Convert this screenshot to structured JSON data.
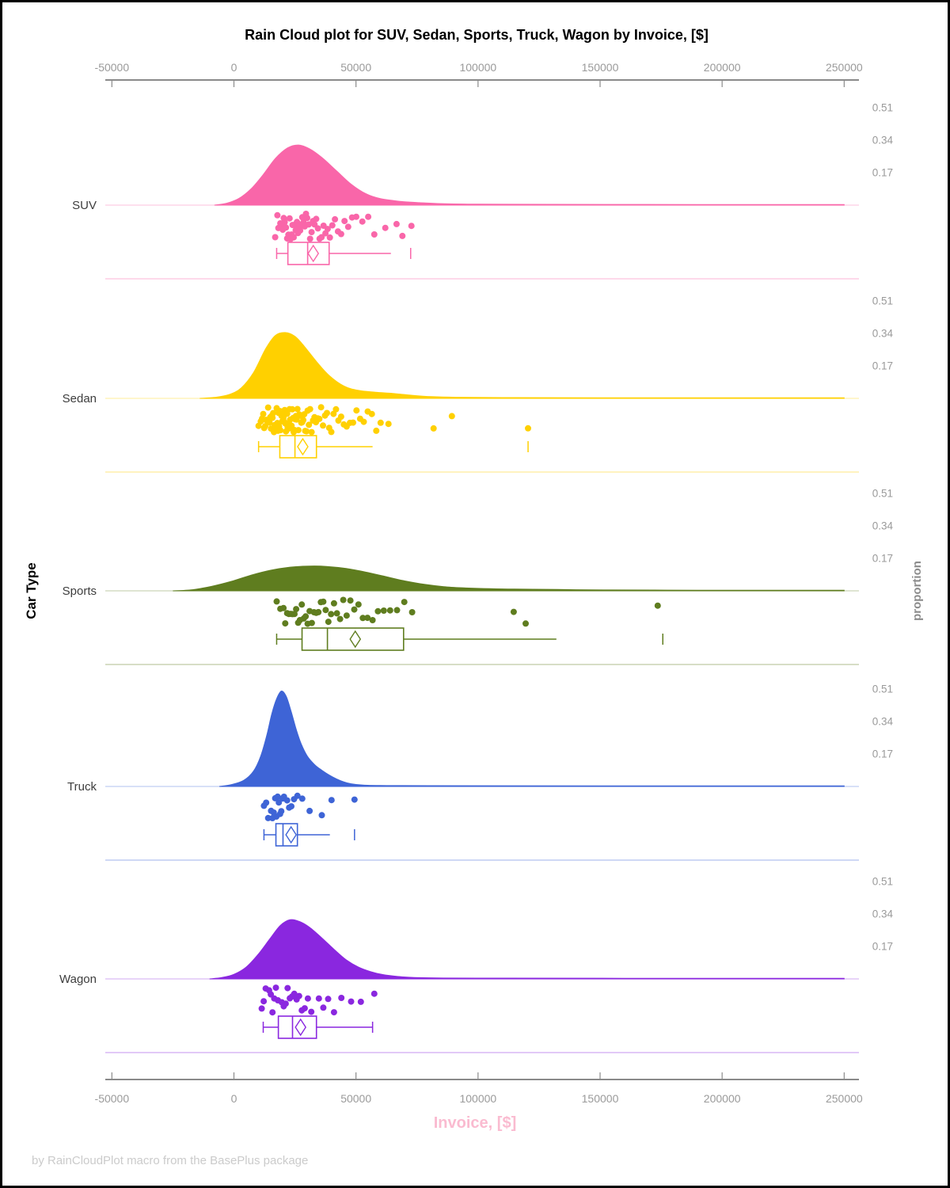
{
  "title": "Rain Cloud plot for SUV, Sedan, Sports, Truck, Wagon by Invoice, [$]",
  "footer": "by RainCloudPlot macro from the BasePlus package",
  "axes": {
    "x_label": "Invoice, [$]",
    "x_label_color": "#fabbd0",
    "y_label": "Car Type",
    "y2_label": "proportion",
    "x_ticks": [
      "-50000",
      "0",
      "50000",
      "100000",
      "150000",
      "200000",
      "250000"
    ],
    "proportion_ticks": [
      "0.51",
      "0.34",
      "0.17"
    ],
    "tick_color": "#9a9a9a"
  },
  "chart_data": {
    "type": "raincloud",
    "orientation": "horizontal",
    "x_axis": {
      "label": "Invoice, [$]",
      "range": [
        -50000,
        250000
      ],
      "ticks": [
        -50000,
        0,
        50000,
        100000,
        150000,
        200000,
        250000
      ]
    },
    "proportion_axis": {
      "label": "proportion",
      "ticks": [
        0.51,
        0.34,
        0.17
      ]
    },
    "categories": [
      "SUV",
      "Sedan",
      "Sports",
      "Truck",
      "Wagon"
    ],
    "series": [
      {
        "name": "SUV",
        "color": "#f966a9",
        "density": [
          [
            -8000,
            0
          ],
          [
            -3000,
            0.01
          ],
          [
            2000,
            0.035
          ],
          [
            7000,
            0.085
          ],
          [
            12000,
            0.16
          ],
          [
            17000,
            0.245
          ],
          [
            22000,
            0.3
          ],
          [
            26500,
            0.315
          ],
          [
            31000,
            0.295
          ],
          [
            36000,
            0.25
          ],
          [
            42000,
            0.18
          ],
          [
            48000,
            0.11
          ],
          [
            54000,
            0.06
          ],
          [
            60000,
            0.034
          ],
          [
            68000,
            0.02
          ],
          [
            76000,
            0.013
          ],
          [
            85000,
            0.008
          ],
          [
            100000,
            0.005
          ],
          [
            130000,
            0.004
          ],
          [
            190000,
            0.0035
          ],
          [
            250000,
            0.003
          ]
        ],
        "points": [
          16900,
          17800,
          18200,
          19000,
          19500,
          20000,
          20400,
          20800,
          21300,
          21800,
          22300,
          22800,
          23200,
          23600,
          24000,
          24500,
          24900,
          25300,
          25800,
          26200,
          26700,
          27100,
          27600,
          28000,
          28500,
          29000,
          29500,
          30000,
          30600,
          31200,
          31800,
          32400,
          33000,
          33700,
          34400,
          35100,
          35900,
          36700,
          37500,
          38400,
          39300,
          40300,
          41400,
          42600,
          43900,
          45300,
          46800,
          48400,
          50100,
          52600,
          55000,
          57500,
          62000,
          66600,
          69000,
          72700
        ],
        "box": {
          "whisker_low": 17500,
          "q1": 22100,
          "median": 30200,
          "q3": 39000,
          "whisker_high": 64300,
          "mean": 32500,
          "outliers": [
            72400
          ]
        }
      },
      {
        "name": "Sedan",
        "color": "#ffd000",
        "density": [
          [
            -14000,
            0
          ],
          [
            -8000,
            0.005
          ],
          [
            -2000,
            0.02
          ],
          [
            3000,
            0.055
          ],
          [
            8000,
            0.135
          ],
          [
            13000,
            0.26
          ],
          [
            17000,
            0.33
          ],
          [
            21000,
            0.345
          ],
          [
            25000,
            0.325
          ],
          [
            29000,
            0.27
          ],
          [
            34000,
            0.19
          ],
          [
            39000,
            0.12
          ],
          [
            45000,
            0.065
          ],
          [
            51000,
            0.042
          ],
          [
            58000,
            0.032
          ],
          [
            65000,
            0.026
          ],
          [
            73000,
            0.016
          ],
          [
            81000,
            0.009
          ],
          [
            91000,
            0.006
          ],
          [
            110000,
            0.004
          ],
          [
            150000,
            0.0035
          ],
          [
            250000,
            0.003
          ]
        ],
        "points": [
          10100,
          11000,
          11500,
          12000,
          12400,
          12800,
          13100,
          13400,
          13700,
          14000,
          14300,
          14600,
          14900,
          15200,
          15500,
          15800,
          16100,
          16400,
          16700,
          17000,
          17200,
          17500,
          17800,
          18000,
          18300,
          18500,
          18800,
          19000,
          19300,
          19500,
          19800,
          20000,
          20300,
          20500,
          20800,
          21000,
          21300,
          21500,
          21800,
          22000,
          22300,
          22500,
          22800,
          23000,
          23300,
          23600,
          23900,
          24200,
          24500,
          24800,
          25100,
          25400,
          25700,
          26000,
          26400,
          26800,
          27200,
          27600,
          28000,
          28400,
          28800,
          29200,
          29700,
          30200,
          30700,
          31200,
          31800,
          32400,
          33000,
          33600,
          34300,
          35000,
          35700,
          36500,
          37300,
          38100,
          39000,
          39900,
          40800,
          41800,
          42800,
          43900,
          45000,
          46200,
          47500,
          48800,
          50200,
          51700,
          53200,
          54800,
          56500,
          58300,
          60100,
          63300,
          81800,
          89300,
          120500
        ],
        "box": {
          "whisker_low": 10100,
          "q1": 18800,
          "median": 25000,
          "q3": 33800,
          "whisker_high": 56800,
          "mean": 28200,
          "outliers": [
            120500
          ]
        }
      },
      {
        "name": "Sports",
        "color": "#5f7d1f",
        "density": [
          [
            -25000,
            0
          ],
          [
            -17000,
            0.006
          ],
          [
            -9000,
            0.024
          ],
          [
            -1000,
            0.05
          ],
          [
            7000,
            0.082
          ],
          [
            15000,
            0.108
          ],
          [
            23000,
            0.124
          ],
          [
            31000,
            0.13
          ],
          [
            38000,
            0.128
          ],
          [
            46000,
            0.117
          ],
          [
            54000,
            0.098
          ],
          [
            62000,
            0.075
          ],
          [
            70000,
            0.052
          ],
          [
            78000,
            0.034
          ],
          [
            86000,
            0.022
          ],
          [
            95000,
            0.015
          ],
          [
            105000,
            0.011
          ],
          [
            115000,
            0.009
          ],
          [
            128000,
            0.008
          ],
          [
            140000,
            0.006
          ],
          [
            155000,
            0.0045
          ],
          [
            172000,
            0.004
          ],
          [
            190000,
            0.0035
          ],
          [
            220000,
            0.003
          ],
          [
            250000,
            0.0028
          ]
        ],
        "points": [
          17500,
          19000,
          20300,
          21000,
          21800,
          22500,
          23300,
          24000,
          24800,
          25500,
          26300,
          27000,
          27800,
          28600,
          29400,
          30200,
          31000,
          31900,
          32800,
          33700,
          34600,
          35600,
          36600,
          37600,
          38700,
          39800,
          41000,
          42200,
          43500,
          44800,
          46200,
          47700,
          49300,
          51000,
          52800,
          54700,
          56800,
          59000,
          61400,
          64000,
          66800,
          69800,
          73000,
          114600,
          119500,
          173600
        ],
        "box": {
          "whisker_low": 17500,
          "q1": 27900,
          "median": 38300,
          "q3": 69500,
          "whisker_high": 132100,
          "mean": 49700,
          "outliers": [
            175700
          ]
        }
      },
      {
        "name": "Truck",
        "color": "#3e64d6",
        "density": [
          [
            -6000,
            0
          ],
          [
            -1000,
            0.01
          ],
          [
            4000,
            0.032
          ],
          [
            8000,
            0.08
          ],
          [
            11000,
            0.16
          ],
          [
            13500,
            0.27
          ],
          [
            15500,
            0.38
          ],
          [
            17500,
            0.46
          ],
          [
            19500,
            0.5
          ],
          [
            21500,
            0.47
          ],
          [
            23500,
            0.39
          ],
          [
            25500,
            0.3
          ],
          [
            27500,
            0.225
          ],
          [
            30000,
            0.16
          ],
          [
            33000,
            0.115
          ],
          [
            36000,
            0.085
          ],
          [
            39000,
            0.06
          ],
          [
            42000,
            0.04
          ],
          [
            45000,
            0.024
          ],
          [
            48000,
            0.014
          ],
          [
            53000,
            0.007
          ],
          [
            60000,
            0.005
          ],
          [
            80000,
            0.004
          ],
          [
            150000,
            0.0032
          ],
          [
            250000,
            0.0028
          ]
        ],
        "points": [
          12300,
          13200,
          14000,
          15200,
          15800,
          16300,
          16900,
          17400,
          17900,
          18400,
          18900,
          19400,
          19900,
          20500,
          21800,
          22600,
          23500,
          24600,
          26000,
          28000,
          31000,
          36000,
          40000,
          49400
        ],
        "box": {
          "whisker_low": 12300,
          "q1": 17200,
          "median": 20100,
          "q3": 26000,
          "whisker_high": 39300,
          "mean": 23400,
          "outliers": [
            49400
          ]
        }
      },
      {
        "name": "Wagon",
        "color": "#8a27df",
        "density": [
          [
            -10000,
            0
          ],
          [
            -5000,
            0.007
          ],
          [
            0,
            0.024
          ],
          [
            5000,
            0.062
          ],
          [
            10000,
            0.13
          ],
          [
            15000,
            0.215
          ],
          [
            19000,
            0.28
          ],
          [
            23000,
            0.31
          ],
          [
            27000,
            0.3
          ],
          [
            31000,
            0.27
          ],
          [
            36000,
            0.215
          ],
          [
            41000,
            0.155
          ],
          [
            46000,
            0.1
          ],
          [
            51000,
            0.062
          ],
          [
            56000,
            0.038
          ],
          [
            61000,
            0.023
          ],
          [
            67000,
            0.013
          ],
          [
            74000,
            0.007
          ],
          [
            83000,
            0.005
          ],
          [
            100000,
            0.004
          ],
          [
            160000,
            0.0032
          ],
          [
            250000,
            0.0028
          ]
        ],
        "points": [
          11400,
          12200,
          13000,
          14400,
          15100,
          15800,
          16500,
          17200,
          18000,
          19600,
          20400,
          21200,
          22000,
          22900,
          23800,
          24700,
          25700,
          26700,
          27800,
          29000,
          30300,
          31700,
          34800,
          36600,
          38600,
          41000,
          44000,
          48000,
          52000,
          57500
        ],
        "box": {
          "whisker_low": 12000,
          "q1": 18200,
          "median": 24000,
          "q3": 33800,
          "whisker_high": 56800,
          "mean": 27300,
          "outliers": []
        }
      }
    ]
  }
}
